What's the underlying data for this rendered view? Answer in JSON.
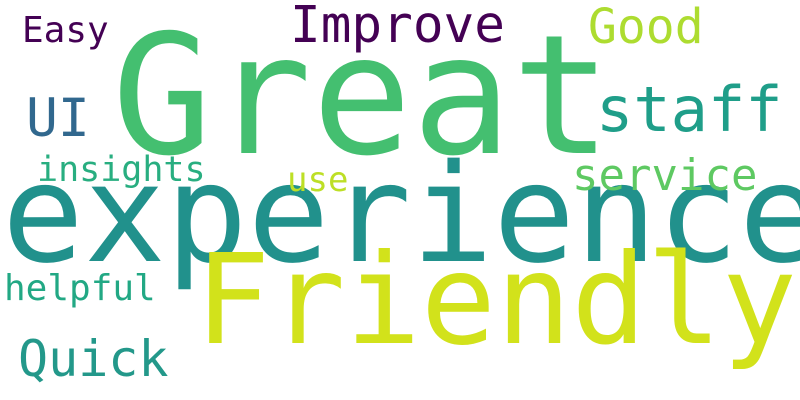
{
  "word_cloud": {
    "words": {
      "great": {
        "text": "Great",
        "color": "#44bf70"
      },
      "experience": {
        "text": "experience",
        "color": "#21918c"
      },
      "friendly": {
        "text": "Friendly",
        "color": "#d2e21b"
      },
      "improve": {
        "text": "Improve",
        "color": "#440154"
      },
      "good": {
        "text": "Good",
        "color": "#addc30"
      },
      "staff": {
        "text": "staff",
        "color": "#1f9e89"
      },
      "easy": {
        "text": "Easy",
        "color": "#440154"
      },
      "ui": {
        "text": "UI",
        "color": "#31688e"
      },
      "insights": {
        "text": "insights",
        "color": "#28ae80"
      },
      "service": {
        "text": "service",
        "color": "#5ec962"
      },
      "use": {
        "text": "use",
        "color": "#bddf26"
      },
      "helpful": {
        "text": "helpful",
        "color": "#22a884"
      },
      "quick": {
        "text": "Quick",
        "color": "#23988a"
      }
    }
  }
}
